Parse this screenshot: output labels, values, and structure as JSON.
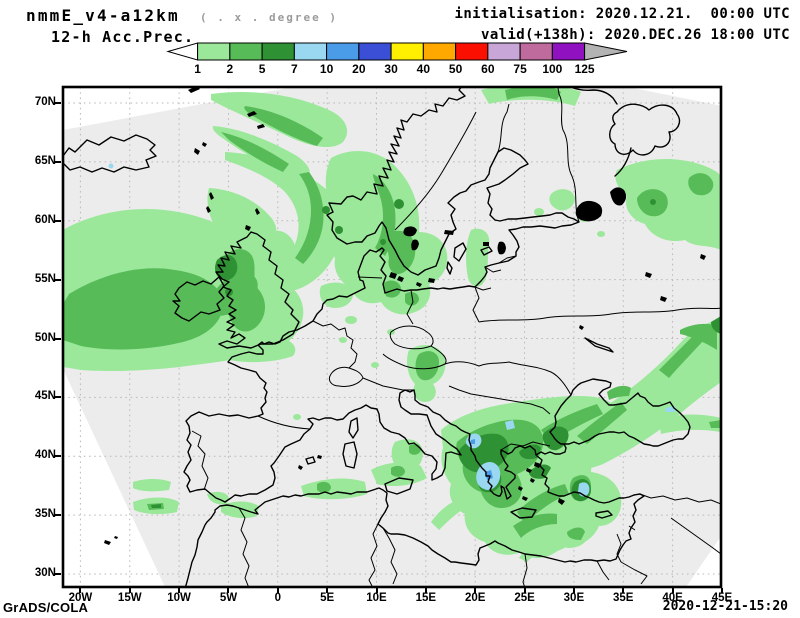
{
  "header": {
    "model": "nmmE_v4-a12km",
    "grid_note": "( . x . degree )",
    "product": "12-h Acc.Prec.",
    "init": "initialisation: 2020.12.21.  00:00 UTC",
    "valid": "valid(+138h): 2020.DEC.26 18:00 UTC"
  },
  "colorbar": {
    "tick_labels": [
      "1",
      "2",
      "5",
      "7",
      "10",
      "20",
      "30",
      "40",
      "50",
      "60",
      "75",
      "100",
      "125"
    ],
    "segment_colors": [
      "#9be89b",
      "#57bc57",
      "#2e9133",
      "#9ad8f2",
      "#4a9ce8",
      "#3a4fd6",
      "#ffef00",
      "#ffa800",
      "#fa0f00",
      "#c9a6d8",
      "#bf6b9e",
      "#8f11c0"
    ],
    "left_arrow_color": "#ffffff",
    "right_arrow_color": "#b3b3b3"
  },
  "map": {
    "lat_labels": [
      "70N",
      "65N",
      "60N",
      "55N",
      "50N",
      "45N",
      "40N",
      "35N",
      "30N"
    ],
    "lon_labels": [
      "20W",
      "15W",
      "10W",
      "5W",
      "0",
      "5E",
      "10E",
      "15E",
      "20E",
      "25E",
      "30E",
      "35E",
      "40E",
      "45E"
    ],
    "palette": {
      "domain_gray": "#ececec",
      "outside_white": "#ffffff",
      "grid_dots": "#b9b9b9",
      "coastline": "#000000",
      "light_green": "#9be89b",
      "mid_green": "#57bc57",
      "dark_green": "#2e9133",
      "light_blue": "#9ad8f2",
      "mid_blue": "#4a9ce8"
    }
  },
  "chart_data": {
    "type": "heatmap",
    "title": "12-h Acc.Prec.",
    "legend_levels": [
      1,
      2,
      5,
      7,
      10,
      20,
      30,
      40,
      50,
      60,
      75,
      100,
      125
    ]
  },
  "footer": {
    "credit": "GrADS/COLA",
    "timestamp": "2020-12-21-15:20"
  }
}
